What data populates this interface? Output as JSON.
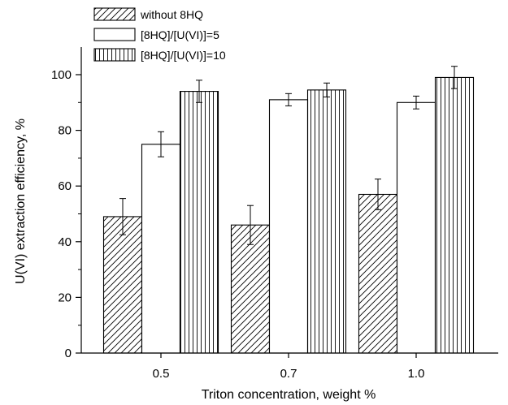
{
  "chart_data": {
    "type": "bar",
    "xlabel": "Triton concentration, weight %",
    "ylabel": "U(VI) extraction efficiency, %",
    "categories": [
      "0.5",
      "0.7",
      "1.0"
    ],
    "ylim": [
      0,
      110
    ],
    "yticks": [
      0,
      20,
      40,
      60,
      80,
      100
    ],
    "grid": false,
    "legend_position": "top-left",
    "series": [
      {
        "name": "without 8HQ",
        "pattern": "diagonal-hatch",
        "values": [
          49,
          46,
          57
        ],
        "errors": [
          6.5,
          7,
          5.5
        ]
      },
      {
        "name": "[8HQ]/[U(VI)]=5",
        "pattern": "none",
        "values": [
          75,
          91,
          90
        ],
        "errors": [
          4.5,
          2.2,
          2.3
        ]
      },
      {
        "name": "[8HQ]/[U(VI)]=10",
        "pattern": "vertical-hatch",
        "values": [
          94,
          94.5,
          99
        ],
        "errors": [
          4,
          2.5,
          4
        ]
      }
    ]
  }
}
